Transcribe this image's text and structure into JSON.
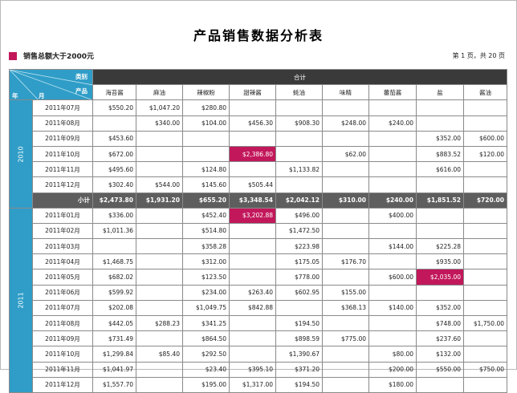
{
  "title": "产品销售数据分析表",
  "legend": {
    "label": "销售总额大于2000元",
    "color": "#c2185b"
  },
  "page_info": "第 1 页，共 20 页",
  "header": {
    "category_label": "类别",
    "product_label": "产品",
    "year_label": "年",
    "month_label": "月",
    "total_label": "合计",
    "products": [
      "海苔酱",
      "麻油",
      "辣椒粉",
      "甜辣酱",
      "蚝油",
      "味精",
      "蕃茄酱",
      "盐",
      "酱油"
    ]
  },
  "groups": [
    {
      "year": "2010",
      "rows": [
        {
          "month": "2011年07月",
          "cells": [
            "$550.20",
            "$1,047.20",
            "$280.80",
            "",
            "",
            "",
            "",
            "",
            ""
          ],
          "hl": []
        },
        {
          "month": "2011年08月",
          "cells": [
            "",
            "$340.00",
            "$104.00",
            "$456.30",
            "$908.30",
            "$248.00",
            "$240.00",
            "",
            ""
          ],
          "hl": []
        },
        {
          "month": "2011年09月",
          "cells": [
            "$453.60",
            "",
            "",
            "",
            "",
            "",
            "",
            "$352.00",
            "$600.00"
          ],
          "hl": []
        },
        {
          "month": "2011年10月",
          "cells": [
            "$672.00",
            "",
            "",
            "$2,386.80",
            "",
            "$62.00",
            "",
            "$883.52",
            "$120.00"
          ],
          "hl": [
            3
          ]
        },
        {
          "month": "2011年11月",
          "cells": [
            "$495.60",
            "",
            "$124.80",
            "",
            "$1,133.82",
            "",
            "",
            "$616.00",
            ""
          ],
          "hl": []
        },
        {
          "month": "2011年12月",
          "cells": [
            "$302.40",
            "$544.00",
            "$145.60",
            "$505.44",
            "",
            "",
            "",
            "",
            ""
          ],
          "hl": []
        }
      ],
      "subtotal": {
        "label": "小计",
        "cells": [
          "$2,473.80",
          "$1,931.20",
          "$655.20",
          "$3,348.54",
          "$2,042.12",
          "$310.00",
          "$240.00",
          "$1,851.52",
          "$720.00"
        ]
      }
    },
    {
      "year": "2011",
      "rows": [
        {
          "month": "2011年01月",
          "cells": [
            "$336.00",
            "",
            "$452.40",
            "$3,202.88",
            "$496.00",
            "",
            "$400.00",
            "",
            ""
          ],
          "hl": [
            3
          ]
        },
        {
          "month": "2011年02月",
          "cells": [
            "$1,011.36",
            "",
            "$514.80",
            "",
            "$1,472.50",
            "",
            "",
            "",
            ""
          ],
          "hl": []
        },
        {
          "month": "2011年03月",
          "cells": [
            "",
            "",
            "$358.28",
            "",
            "$223.98",
            "",
            "$144.00",
            "$225.28",
            ""
          ],
          "hl": []
        },
        {
          "month": "2011年04月",
          "cells": [
            "$1,468.75",
            "",
            "$312.00",
            "",
            "$175.05",
            "$176.70",
            "",
            "$935.00",
            ""
          ],
          "hl": []
        },
        {
          "month": "2011年05月",
          "cells": [
            "$682.02",
            "",
            "$123.50",
            "",
            "$778.00",
            "",
            "$600.00",
            "$2,035.00",
            ""
          ],
          "hl": [
            7
          ]
        },
        {
          "month": "2011年06月",
          "cells": [
            "$599.92",
            "",
            "$234.00",
            "$263.40",
            "$602.95",
            "$155.00",
            "",
            "",
            ""
          ],
          "hl": []
        },
        {
          "month": "2011年07月",
          "cells": [
            "$202.08",
            "",
            "$1,049.75",
            "$842.88",
            "",
            "$368.13",
            "$140.00",
            "$352.00",
            ""
          ],
          "hl": []
        },
        {
          "month": "2011年08月",
          "cells": [
            "$442.05",
            "$288.23",
            "$341.25",
            "",
            "$194.50",
            "",
            "",
            "$748.00",
            "$1,750.00"
          ],
          "hl": []
        },
        {
          "month": "2011年09月",
          "cells": [
            "$731.49",
            "",
            "$864.50",
            "",
            "$898.59",
            "$775.00",
            "",
            "$237.60",
            ""
          ],
          "hl": []
        },
        {
          "month": "2011年10月",
          "cells": [
            "$1,299.84",
            "$85.40",
            "$292.50",
            "",
            "$1,390.67",
            "",
            "$80.00",
            "$132.00",
            ""
          ],
          "hl": []
        },
        {
          "month": "2011年11月",
          "cells": [
            "$1,041.97",
            "",
            "$23.40",
            "$395.10",
            "$371.20",
            "",
            "$200.00",
            "$550.00",
            "$750.00"
          ],
          "hl": []
        },
        {
          "month": "2011年12月",
          "cells": [
            "$1,557.70",
            "",
            "$195.00",
            "$1,317.00",
            "$194.50",
            "",
            "$180.00",
            "",
            ""
          ],
          "hl": []
        }
      ]
    }
  ]
}
